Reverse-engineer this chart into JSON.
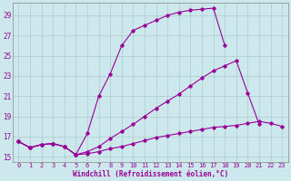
{
  "xlabel": "Windchill (Refroidissement éolien,°C)",
  "background_color": "#cce8ec",
  "grid_color": "#aacccc",
  "line_color": "#990099",
  "xlim": [
    -0.5,
    23.5
  ],
  "ylim": [
    14.5,
    30.2
  ],
  "yticks": [
    15,
    17,
    19,
    21,
    23,
    25,
    27,
    29
  ],
  "xticks": [
    0,
    1,
    2,
    3,
    4,
    5,
    6,
    7,
    8,
    9,
    10,
    11,
    12,
    13,
    14,
    15,
    16,
    17,
    18,
    19,
    20,
    21,
    22,
    23
  ],
  "line1_x": [
    0,
    1,
    2,
    3,
    4,
    5,
    6,
    7,
    8,
    9,
    10,
    11,
    12,
    13,
    14,
    15,
    16,
    17,
    18
  ],
  "line1_y": [
    16.5,
    15.9,
    16.2,
    16.3,
    16.0,
    15.2,
    17.3,
    21.0,
    23.2,
    26.0,
    27.5,
    28.0,
    28.5,
    29.0,
    29.3,
    29.5,
    29.6,
    29.7,
    26.0
  ],
  "line2_x": [
    0,
    1,
    2,
    3,
    4,
    5,
    6,
    7,
    8,
    9,
    10,
    11,
    12,
    13,
    14,
    15,
    16,
    17,
    18,
    19,
    20,
    21
  ],
  "line2_y": [
    16.5,
    15.9,
    16.2,
    16.3,
    16.0,
    15.2,
    15.5,
    16.0,
    16.8,
    17.5,
    18.2,
    19.0,
    19.8,
    20.5,
    21.2,
    22.0,
    22.8,
    23.5,
    24.0,
    24.5,
    21.3,
    18.2
  ],
  "line3_x": [
    0,
    1,
    2,
    3,
    4,
    5,
    6,
    7,
    8,
    9,
    10,
    11,
    12,
    13,
    14,
    15,
    16,
    17,
    18,
    19,
    20,
    21,
    22,
    23
  ],
  "line3_y": [
    16.5,
    15.9,
    16.2,
    16.3,
    16.0,
    15.2,
    15.3,
    15.5,
    15.8,
    16.0,
    16.3,
    16.6,
    16.9,
    17.1,
    17.3,
    17.5,
    17.7,
    17.9,
    18.0,
    18.1,
    18.3,
    18.5,
    18.3,
    18.0
  ]
}
